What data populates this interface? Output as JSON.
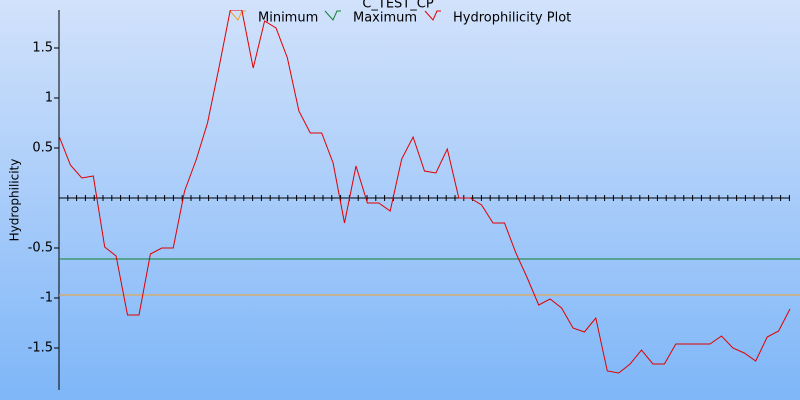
{
  "chart_data": {
    "type": "line",
    "title": "C_TEST_CP",
    "y_label": "Hydrophilicity",
    "ylim": [
      -1.92,
      1.88
    ],
    "yticks": [
      -1.5,
      -1,
      -0.5,
      0.5,
      1,
      1.5
    ],
    "series": [
      {
        "name": "Minimum",
        "color": "#f0a030",
        "value": -0.97
      },
      {
        "name": "Maximum",
        "color": "#108030",
        "value": -0.61
      },
      {
        "name": "Hydrophilicity Plot",
        "color": "#e00000",
        "values": [
          0.62,
          0.33,
          0.2,
          0.22,
          -0.49,
          -0.58,
          -1.17,
          -1.17,
          -0.56,
          -0.5,
          -0.5,
          0.07,
          0.38,
          0.75,
          1.3,
          1.88,
          1.88,
          1.3,
          1.77,
          1.7,
          1.4,
          0.87,
          0.65,
          0.65,
          0.35,
          -0.25,
          0.32,
          -0.05,
          -0.05,
          -0.13,
          0.39,
          0.61,
          0.27,
          0.25,
          0.49,
          0,
          0,
          -0.07,
          -0.25,
          -0.25,
          -0.55,
          -0.8,
          -1.07,
          -1.01,
          -1.1,
          -1.3,
          -1.34,
          -1.2,
          -1.73,
          -1.75,
          -1.66,
          -1.52,
          -1.66,
          -1.66,
          -1.46,
          -1.46,
          -1.46,
          -1.46,
          -1.38,
          -1.5,
          -1.55,
          -1.63,
          -1.39,
          -1.33,
          -1.11
        ]
      }
    ]
  }
}
